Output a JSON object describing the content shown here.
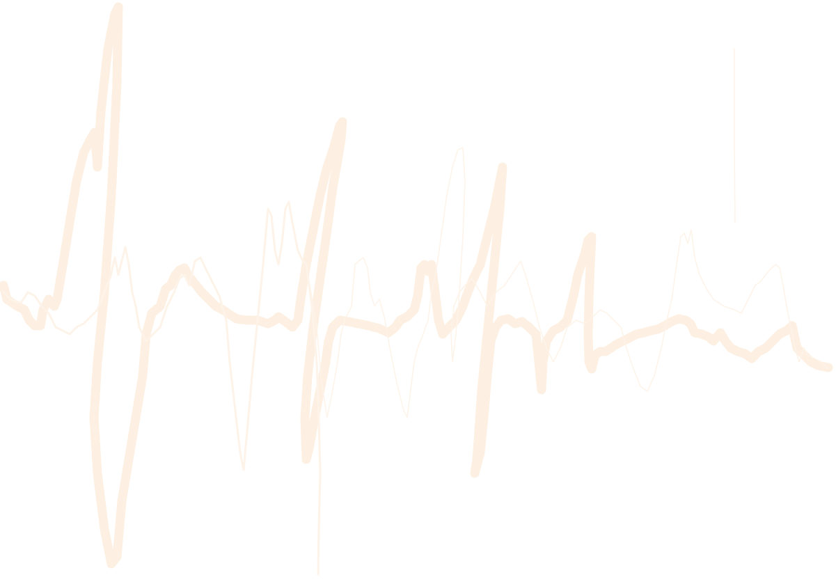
{
  "artwork": {
    "description_free": true,
    "background": "#ffffff",
    "stroke_color": "#fdf0e2",
    "stroke_color_light": "#fdf3e8"
  }
}
